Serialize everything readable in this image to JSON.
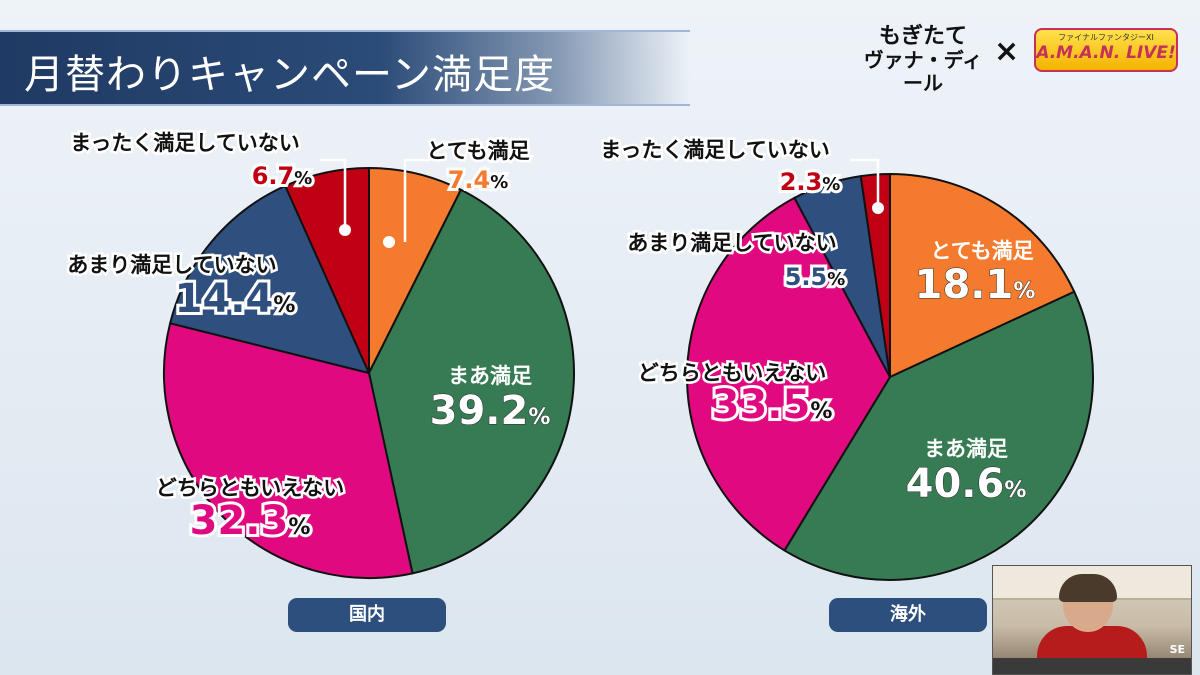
{
  "title": "月替わりキャンペーン満足度",
  "logos": {
    "left_line1": "もぎたて",
    "left_line2": "ヴァナ・ディール",
    "separator": "×",
    "right_small": "ファイナルファンタジーXI",
    "right_big": "A.M.A.N. LIVE!"
  },
  "colors": {
    "very_satisfied": "#f47a2e",
    "satisfied": "#367b53",
    "neutral": "#e0097f",
    "dissatisfied": "#2f4f7f",
    "very_dissatisfied": "#c00013"
  },
  "chart_data": [
    {
      "type": "pie",
      "label": "国内",
      "slices": [
        {
          "key": "very_satisfied",
          "name": "とても満足",
          "value": 7.4
        },
        {
          "key": "satisfied",
          "name": "まあ満足",
          "value": 39.2
        },
        {
          "key": "neutral",
          "name": "どちらともいえない",
          "value": 32.3
        },
        {
          "key": "dissatisfied",
          "name": "あまり満足していない",
          "value": 14.4
        },
        {
          "key": "very_dissatisfied",
          "name": "まったく満足していない",
          "value": 6.7
        }
      ]
    },
    {
      "type": "pie",
      "label": "海外",
      "slices": [
        {
          "key": "very_satisfied",
          "name": "とても満足",
          "value": 18.1
        },
        {
          "key": "satisfied",
          "name": "まあ満足",
          "value": 40.6
        },
        {
          "key": "neutral",
          "name": "どちらともいえない",
          "value": 33.5
        },
        {
          "key": "dissatisfied",
          "name": "あまり満足していない",
          "value": 5.5
        },
        {
          "key": "very_dissatisfied",
          "name": "まったく満足していない",
          "value": 2.3
        }
      ]
    }
  ],
  "percent_sign": "%"
}
